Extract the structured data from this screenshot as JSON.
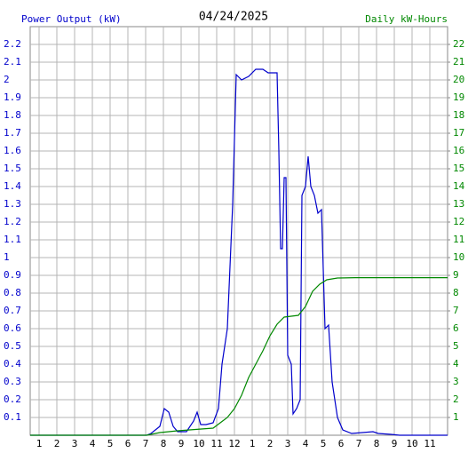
{
  "chart_data": {
    "type": "line",
    "title": "04/24/2025",
    "y_label": "Power Output (kW)",
    "y2_label": "Daily kW-Hours",
    "xlim": [
      0.5,
      24
    ],
    "xticks": [
      1,
      2,
      3,
      4,
      5,
      6,
      7,
      8,
      9,
      10,
      11,
      12,
      {
        "value": 13,
        "label": "1"
      },
      {
        "value": 14,
        "label": "2"
      },
      {
        "value": 15,
        "label": "3"
      },
      {
        "value": 16,
        "label": "4"
      },
      {
        "value": 17,
        "label": "5"
      },
      {
        "value": 18,
        "label": "6"
      },
      {
        "value": 19,
        "label": "7"
      },
      {
        "value": 20,
        "label": "8"
      },
      {
        "value": 21,
        "label": "9"
      },
      {
        "value": 22,
        "label": "10"
      },
      {
        "value": 23,
        "label": "11"
      }
    ],
    "ylim": [
      0,
      2.3
    ],
    "yticks": [
      0.1,
      0.2,
      0.3,
      0.4,
      0.5,
      0.6,
      0.7,
      0.8,
      0.9,
      1.0,
      1.1,
      1.2,
      1.3,
      1.4,
      1.5,
      1.6,
      1.7,
      1.8,
      1.9,
      2.0,
      2.1,
      2.2
    ],
    "y2lim": [
      0,
      23
    ],
    "y2ticks": [
      1,
      2,
      3,
      4,
      5,
      6,
      7,
      8,
      9,
      10,
      11,
      12,
      13,
      14,
      15,
      16,
      17,
      18,
      19,
      20,
      21,
      22
    ],
    "grid": true,
    "series": [
      {
        "name": "Power Output (kW)",
        "color": "#0000cc",
        "x": [
          0.5,
          7.05,
          7.3,
          7.8,
          8.05,
          8.3,
          8.55,
          8.8,
          9.3,
          9.7,
          9.9,
          10.1,
          10.4,
          10.8,
          11.1,
          11.3,
          11.6,
          11.9,
          12.1,
          12.4,
          12.8,
          13.2,
          13.6,
          13.9,
          14.4,
          14.5,
          14.6,
          14.7,
          14.8,
          14.9,
          15.0,
          15.2,
          15.3,
          15.5,
          15.7,
          15.8,
          16.0,
          16.15,
          16.3,
          16.5,
          16.7,
          16.9,
          17.1,
          17.3,
          17.5,
          17.8,
          18.1,
          18.6,
          19.8,
          20.1,
          20.8,
          21.3,
          24
        ],
        "values": [
          0,
          0,
          0.01,
          0.05,
          0.15,
          0.13,
          0.05,
          0.02,
          0.02,
          0.08,
          0.13,
          0.06,
          0.06,
          0.07,
          0.15,
          0.4,
          0.6,
          1.3,
          2.03,
          2.0,
          2.02,
          2.06,
          2.06,
          2.04,
          2.04,
          1.6,
          1.05,
          1.05,
          1.45,
          1.45,
          0.45,
          0.4,
          0.12,
          0.15,
          0.2,
          1.35,
          1.4,
          1.57,
          1.4,
          1.35,
          1.25,
          1.27,
          0.6,
          0.62,
          0.3,
          0.1,
          0.03,
          0.01,
          0.02,
          0.01,
          0.005,
          0,
          0
        ]
      },
      {
        "name": "Daily kW-Hours",
        "color": "#008800",
        "axis": "y2",
        "x": [
          0.5,
          7.05,
          7.8,
          8.8,
          10.8,
          11.6,
          12,
          12.4,
          12.8,
          13.2,
          13.6,
          14,
          14.4,
          14.8,
          15.6,
          16,
          16.4,
          16.8,
          17.2,
          17.8,
          18.8,
          24
        ],
        "values": [
          0,
          0,
          0.15,
          0.25,
          0.4,
          1.0,
          1.5,
          2.25,
          3.25,
          4.0,
          4.75,
          5.6,
          6.25,
          6.65,
          6.75,
          7.25,
          8.1,
          8.5,
          8.75,
          8.85,
          8.87,
          8.87
        ]
      }
    ]
  }
}
